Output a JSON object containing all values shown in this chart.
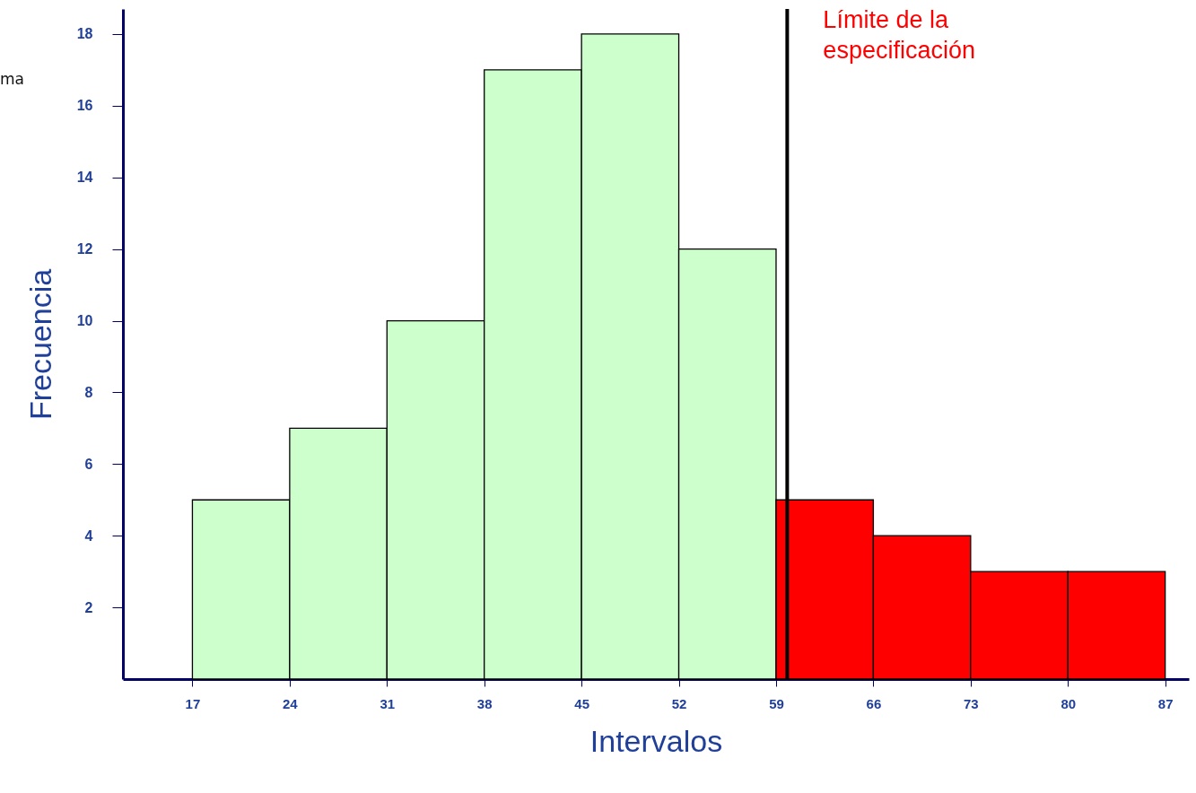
{
  "chart_data": {
    "type": "histogram",
    "xlabel": "Intervalos",
    "ylabel": "Frecuencia",
    "bins": [
      17,
      24,
      31,
      38,
      45,
      52,
      59,
      66,
      73,
      80,
      87
    ],
    "values": [
      5,
      7,
      10,
      17,
      18,
      12,
      5,
      4,
      3,
      3
    ],
    "colors": [
      "#ccffcc",
      "#ccffcc",
      "#ccffcc",
      "#ccffcc",
      "#ccffcc",
      "#ccffcc",
      "#ff0000",
      "#ff0000",
      "#ff0000",
      "#ff0000"
    ],
    "xlim": [
      12,
      88.7
    ],
    "xticks": [
      17,
      24,
      31,
      38,
      45,
      52,
      59,
      66,
      73,
      80,
      87
    ],
    "ylim": [
      0,
      18.7
    ],
    "yticks": [
      2,
      4,
      6,
      8,
      10,
      12,
      14,
      16,
      18
    ],
    "ref_lines": [
      {
        "axis": "x",
        "value": 59.8,
        "label": "Límite de la especificación",
        "color": "#000000"
      }
    ],
    "annotations": [
      "ma"
    ],
    "grid": false
  }
}
